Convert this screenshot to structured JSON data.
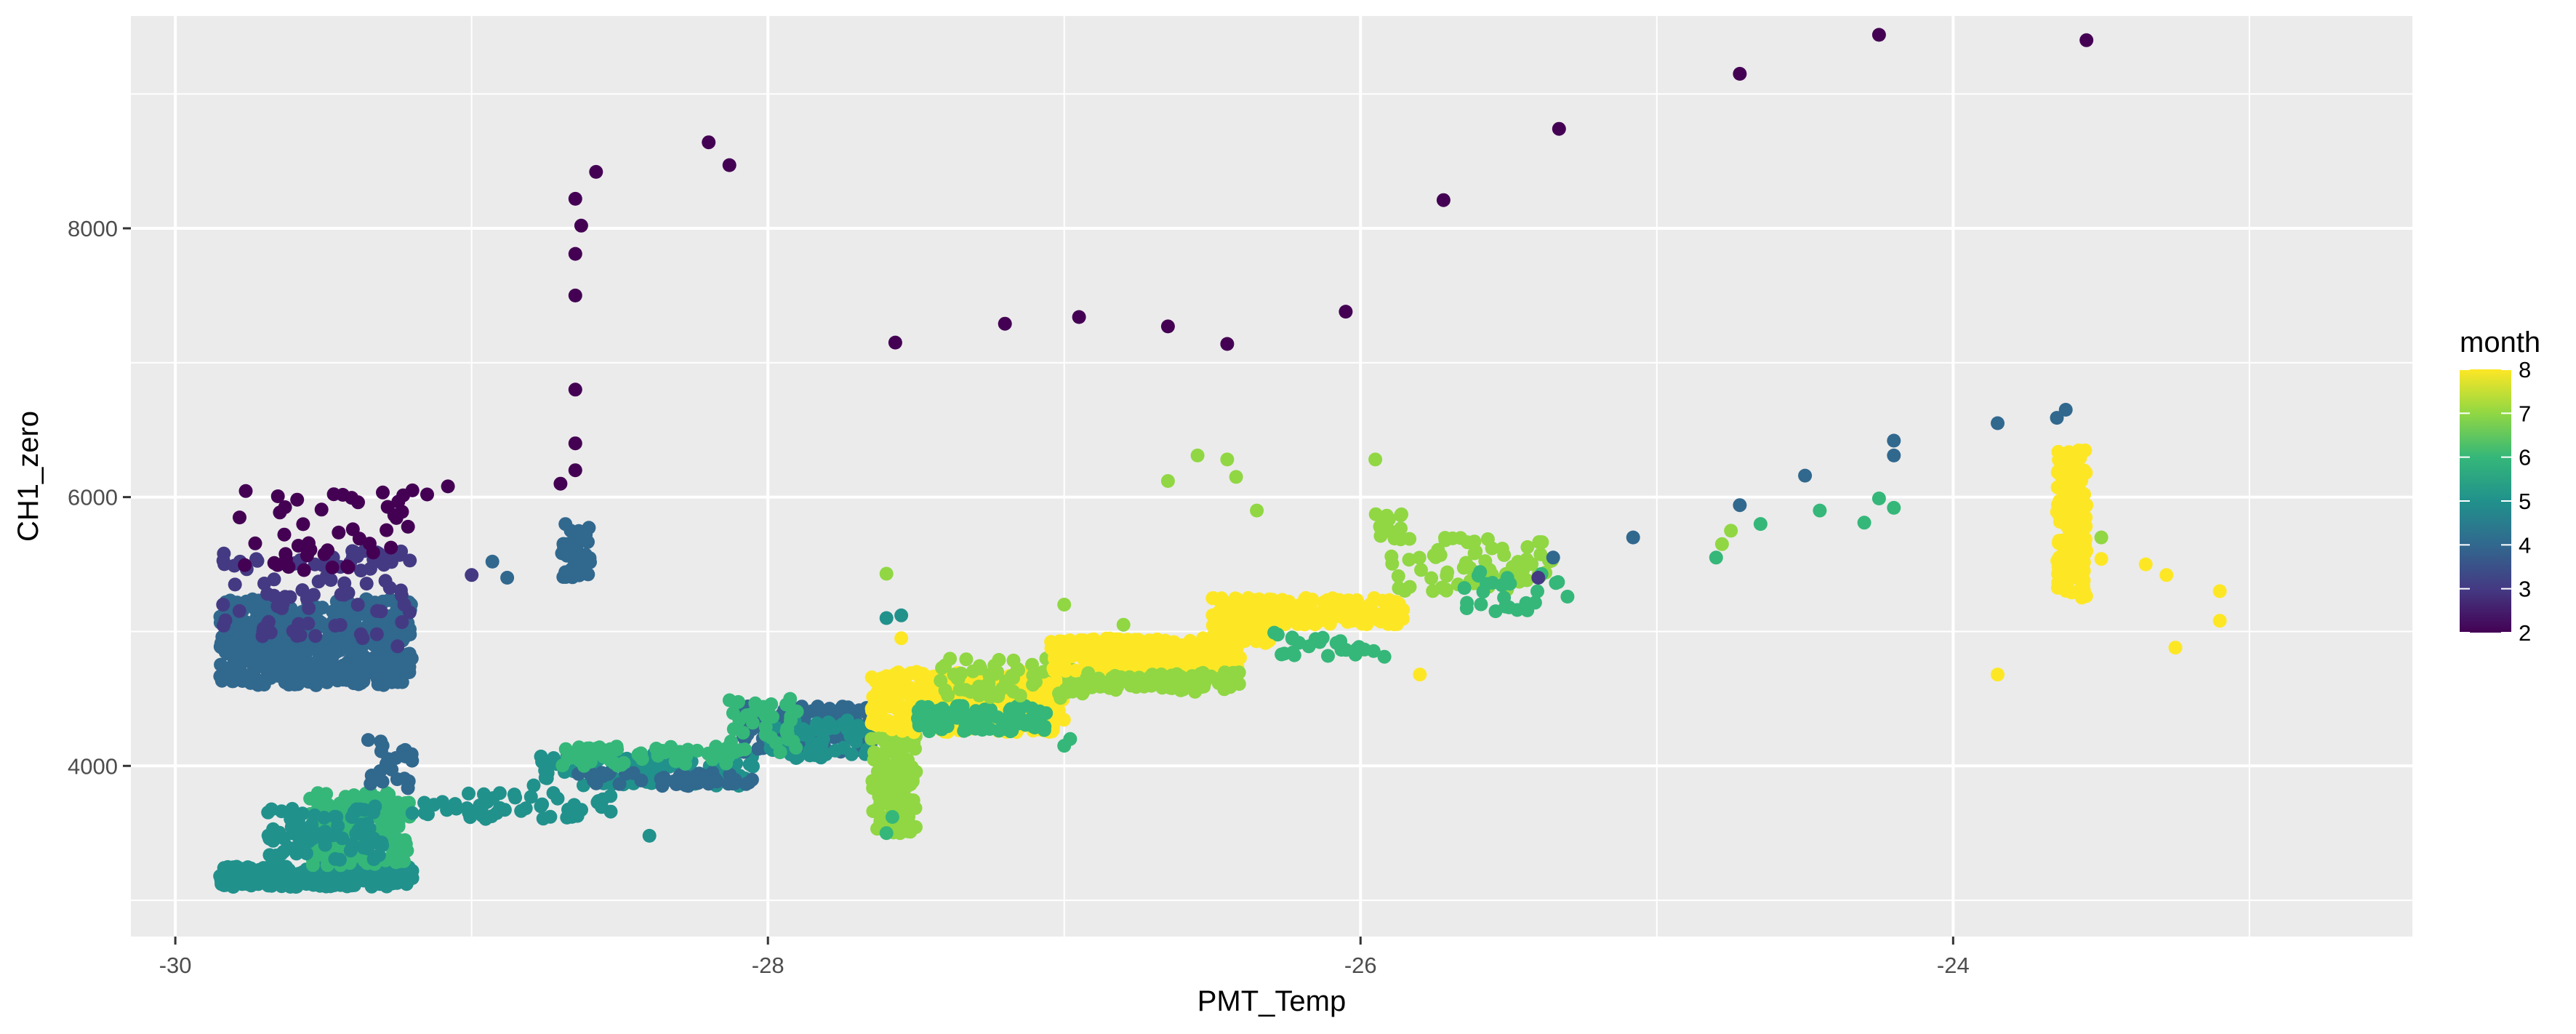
{
  "chart_data": {
    "type": "scatter",
    "xlabel": "PMT_Temp",
    "ylabel": "CH1_zero",
    "xlim": [
      -30.15,
      -22.45
    ],
    "ylim": [
      2730,
      9580
    ],
    "x_ticks": [
      -30,
      -28,
      -26,
      -24
    ],
    "x_tick_labels": [
      "-30",
      "-28",
      "-26",
      "-24"
    ],
    "y_ticks": [
      4000,
      6000,
      8000
    ],
    "y_tick_labels": [
      "4000",
      "6000",
      "8000"
    ],
    "grid": true,
    "legend": {
      "title": "month",
      "placement": "right",
      "type": "continuous colorbar",
      "min": 2,
      "max": 8,
      "ticks": [
        2,
        3,
        4,
        5,
        6,
        7,
        8
      ],
      "tick_labels": [
        "2",
        "3",
        "4",
        "5",
        "6",
        "7",
        "8"
      ]
    },
    "clusters": [
      {
        "month": 4,
        "x": [
          -29.85,
          -29.2
        ],
        "y": [
          4600,
          5250
        ],
        "n": 500
      },
      {
        "month": 3,
        "x": [
          -29.85,
          -29.2
        ],
        "y": [
          4950,
          5600
        ],
        "n": 90
      },
      {
        "month": 2,
        "x": [
          -29.8,
          -29.2
        ],
        "y": [
          5450,
          6050
        ],
        "n": 45
      },
      {
        "month": 5,
        "x": [
          -29.85,
          -29.2
        ],
        "y": [
          3100,
          3250
        ],
        "n": 320
      },
      {
        "month": 6,
        "x": [
          -29.55,
          -29.2
        ],
        "y": [
          3250,
          3800
        ],
        "n": 160
      },
      {
        "month": 5,
        "x": [
          -29.7,
          -29.3
        ],
        "y": [
          3300,
          3700
        ],
        "n": 80
      },
      {
        "month": 4,
        "x": [
          -29.35,
          -29.2
        ],
        "y": [
          3800,
          4200
        ],
        "n": 25
      },
      {
        "month": 5,
        "x": [
          -29.2,
          -28.5
        ],
        "y": [
          3600,
          3800
        ],
        "n": 50
      },
      {
        "month": 5,
        "x": [
          -28.8,
          -28.05
        ],
        "y": [
          3850,
          4100
        ],
        "n": 100
      },
      {
        "month": 4,
        "x": [
          -28.65,
          -28.05
        ],
        "y": [
          3850,
          3950
        ],
        "n": 40
      },
      {
        "month": 6,
        "x": [
          -28.7,
          -28.1
        ],
        "y": [
          4000,
          4150
        ],
        "n": 60
      },
      {
        "month": 4,
        "x": [
          -28.1,
          -27.65
        ],
        "y": [
          4100,
          4450
        ],
        "n": 120
      },
      {
        "month": 5,
        "x": [
          -28.0,
          -27.65
        ],
        "y": [
          4050,
          4350
        ],
        "n": 60
      },
      {
        "month": 6,
        "x": [
          -28.15,
          -27.9
        ],
        "y": [
          4100,
          4500
        ],
        "n": 40
      },
      {
        "month": 7,
        "x": [
          -27.65,
          -27.5
        ],
        "y": [
          3500,
          4300
        ],
        "n": 130
      },
      {
        "month": 8,
        "x": [
          -27.65,
          -27.0
        ],
        "y": [
          4250,
          4700
        ],
        "n": 350
      },
      {
        "month": 6,
        "x": [
          -27.5,
          -27.05
        ],
        "y": [
          4250,
          4450
        ],
        "n": 90
      },
      {
        "month": 7,
        "x": [
          -27.45,
          -26.9
        ],
        "y": [
          4500,
          4800
        ],
        "n": 70
      },
      {
        "month": 8,
        "x": [
          -27.05,
          -26.4
        ],
        "y": [
          4700,
          4950
        ],
        "n": 260
      },
      {
        "month": 7,
        "x": [
          -26.95,
          -26.4
        ],
        "y": [
          4550,
          4700
        ],
        "n": 90
      },
      {
        "month": 8,
        "x": [
          -26.5,
          -26.3
        ],
        "y": [
          4900,
          5250
        ],
        "n": 120
      },
      {
        "month": 8,
        "x": [
          -26.3,
          -25.85
        ],
        "y": [
          5050,
          5250
        ],
        "n": 130
      },
      {
        "month": 6,
        "x": [
          -26.3,
          -25.9
        ],
        "y": [
          4800,
          5000
        ],
        "n": 25
      },
      {
        "month": 7,
        "x": [
          -25.9,
          -25.35
        ],
        "y": [
          5300,
          5700
        ],
        "n": 70
      },
      {
        "month": 6,
        "x": [
          -25.65,
          -25.3
        ],
        "y": [
          5150,
          5450
        ],
        "n": 25
      },
      {
        "month": 7,
        "x": [
          -25.95,
          -25.85
        ],
        "y": [
          5650,
          5900
        ],
        "n": 15
      },
      {
        "month": 4,
        "x": [
          -28.7,
          -28.6
        ],
        "y": [
          5400,
          5800
        ],
        "n": 35
      },
      {
        "month": 8,
        "x": [
          -23.65,
          -23.55
        ],
        "y": [
          5250,
          6350
        ],
        "n": 180
      }
    ],
    "points": [
      {
        "month": 2,
        "x": [
          -28.65,
          -28.65,
          -28.63,
          -28.65,
          -28.65,
          -28.65,
          -28.65,
          -28.58,
          -28.7,
          -28.2,
          -28.13,
          -27.57,
          -27.2,
          -26.95,
          -26.65,
          -26.45,
          -26.05,
          -25.72,
          -25.33,
          -24.72,
          -24.25,
          -23.55,
          -29.08,
          -29.15,
          -29.2
        ],
        "y": [
          8220,
          7810,
          8020,
          7500,
          6800,
          6400,
          6200,
          8420,
          6100,
          8640,
          8470,
          7150,
          7290,
          7340,
          7270,
          7140,
          7380,
          8210,
          8740,
          9150,
          9440,
          9400,
          6080,
          6020,
          6050
        ]
      },
      {
        "month": 3,
        "x": [
          -29.32,
          -29.25,
          -29.0,
          -25.4
        ],
        "y": [
          4980,
          4890,
          5420,
          5400
        ]
      },
      {
        "month": 4,
        "x": [
          -28.93,
          -28.88,
          -28.65,
          -25.35,
          -25.08,
          -24.72,
          -24.5,
          -24.2,
          -24.2,
          -23.85,
          -23.65,
          -23.62
        ],
        "y": [
          5520,
          5400,
          5600,
          5550,
          5700,
          5940,
          6160,
          6310,
          6420,
          6550,
          6590,
          6650
        ]
      },
      {
        "month": 5,
        "x": [
          -28.4,
          -27.6,
          -27.55
        ],
        "y": [
          3480,
          5100,
          5120
        ]
      },
      {
        "month": 6,
        "x": [
          -24.8,
          -24.65,
          -24.45,
          -24.3,
          -24.2,
          -24.25,
          -27.6,
          -27.58,
          -27.0,
          -26.98
        ],
        "y": [
          5550,
          5800,
          5900,
          5810,
          5920,
          5990,
          3500,
          3620,
          4150,
          4200
        ]
      },
      {
        "month": 7,
        "x": [
          -27.6,
          -26.65,
          -26.55,
          -26.45,
          -26.42,
          -26.35,
          -25.95,
          -24.78,
          -24.75,
          -23.5,
          -27.0,
          -26.8
        ],
        "y": [
          5430,
          6120,
          6310,
          6280,
          6150,
          5900,
          6280,
          5650,
          5750,
          5700,
          5200,
          5050
        ]
      },
      {
        "month": 8,
        "x": [
          -25.8,
          -23.85,
          -23.35,
          -23.28,
          -23.25,
          -23.1,
          -23.1,
          -23.5,
          -23.55,
          -27.55
        ],
        "y": [
          4680,
          4680,
          5500,
          5420,
          4880,
          5300,
          5080,
          5540,
          5600,
          4950
        ]
      }
    ]
  }
}
